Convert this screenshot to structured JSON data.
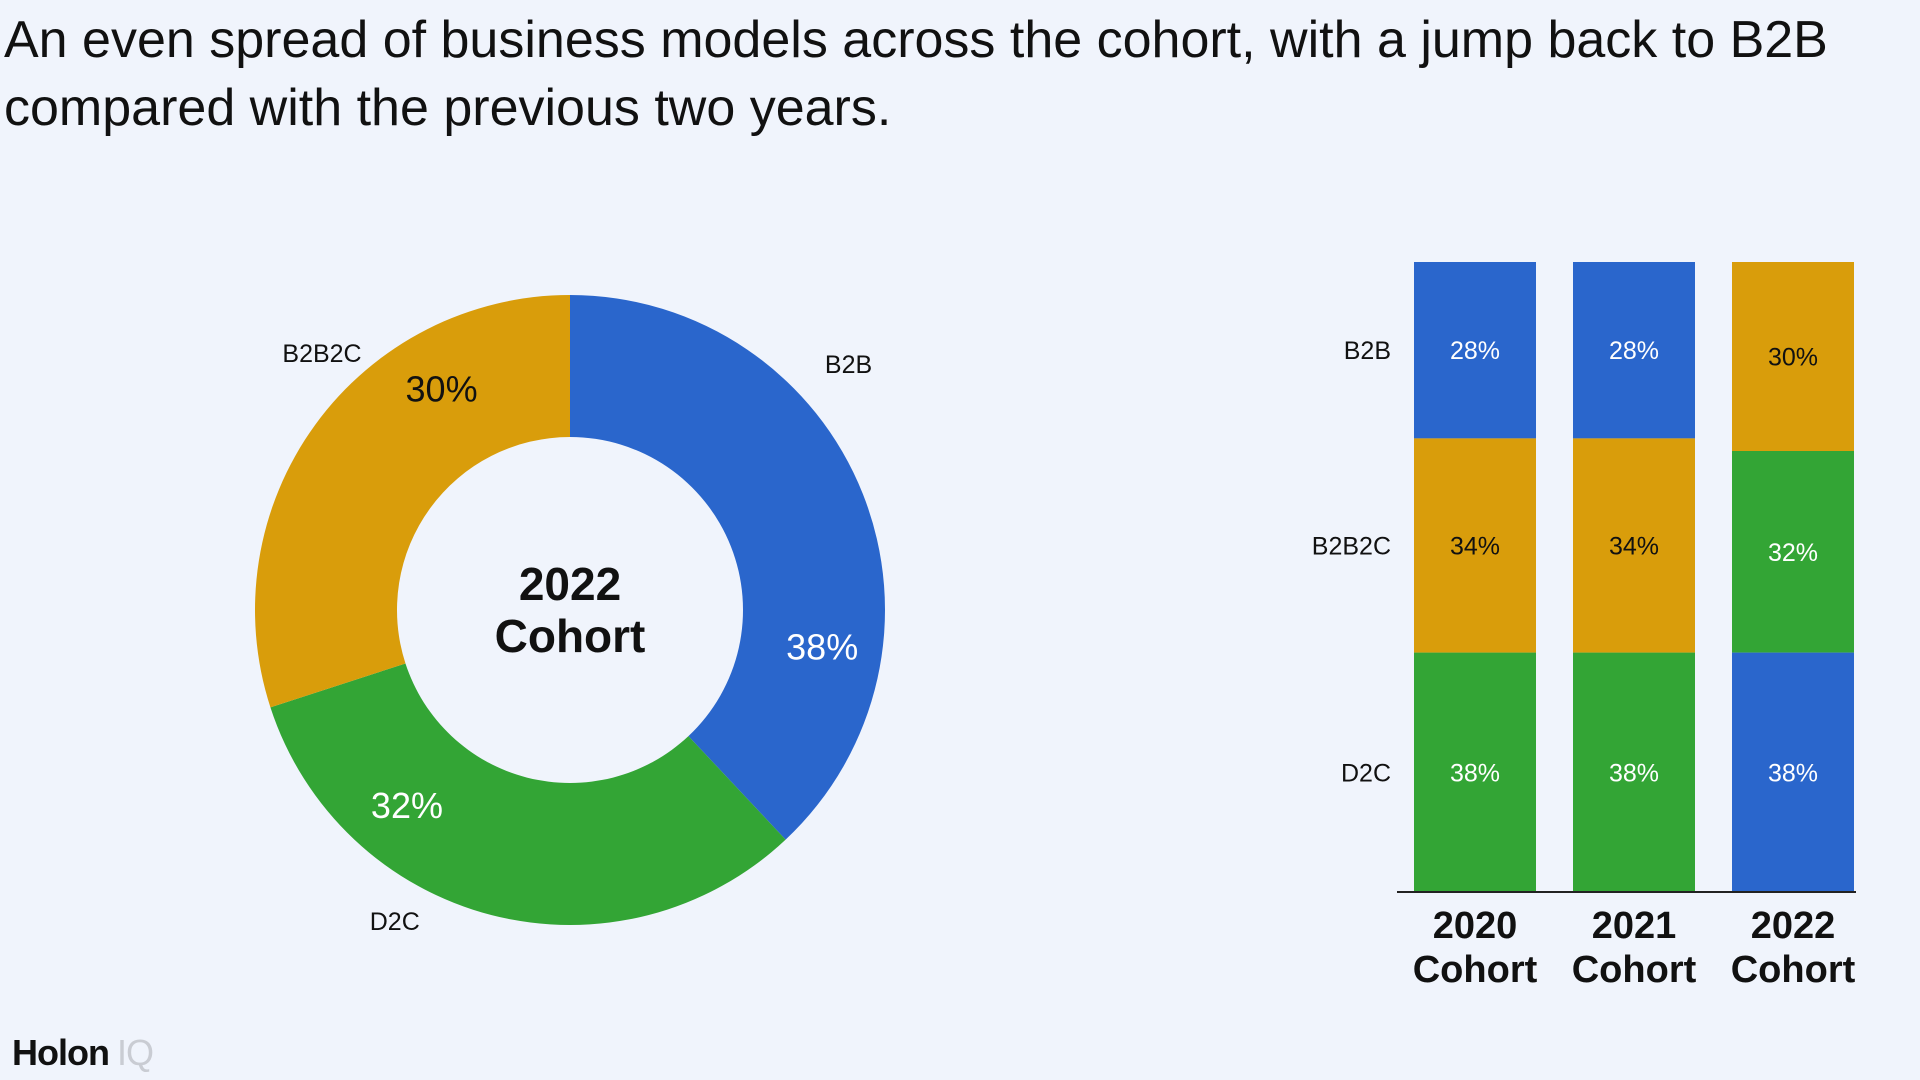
{
  "title": "An even spread of business models across the cohort, with a jump back to B2B compared with the previous two years.",
  "brand": {
    "name": "Holon",
    "suffix": "IQ"
  },
  "colors": {
    "B2B": "#2a66cc",
    "B2B2C": "#d99d0b",
    "D2C": "#33a535",
    "background": "#f0f4fc"
  },
  "chart_data": [
    {
      "type": "pie",
      "variant": "donut",
      "center_label": [
        "2022",
        "Cohort"
      ],
      "slices": [
        {
          "label": "B2B",
          "value": 38,
          "value_label": "38%"
        },
        {
          "label": "D2C",
          "value": 32,
          "value_label": "32%"
        },
        {
          "label": "B2B2C",
          "value": 30,
          "value_label": "30%"
        }
      ]
    },
    {
      "type": "bar",
      "stacked": true,
      "normalized": true,
      "categories": [
        [
          "2020",
          "Cohort"
        ],
        [
          "2021",
          "Cohort"
        ],
        [
          "2022",
          "Cohort"
        ]
      ],
      "row_labels": [
        "B2B",
        "B2B2C",
        "D2C"
      ],
      "stacks": [
        [
          {
            "name": "B2B",
            "value": 28
          },
          {
            "name": "B2B2C",
            "value": 34
          },
          {
            "name": "D2C",
            "value": 38
          }
        ],
        [
          {
            "name": "B2B",
            "value": 28
          },
          {
            "name": "B2B2C",
            "value": 34
          },
          {
            "name": "D2C",
            "value": 38
          }
        ],
        [
          {
            "name": "B2B2C",
            "value": 30
          },
          {
            "name": "D2C",
            "value": 32
          },
          {
            "name": "B2B",
            "value": 38
          }
        ]
      ]
    }
  ]
}
